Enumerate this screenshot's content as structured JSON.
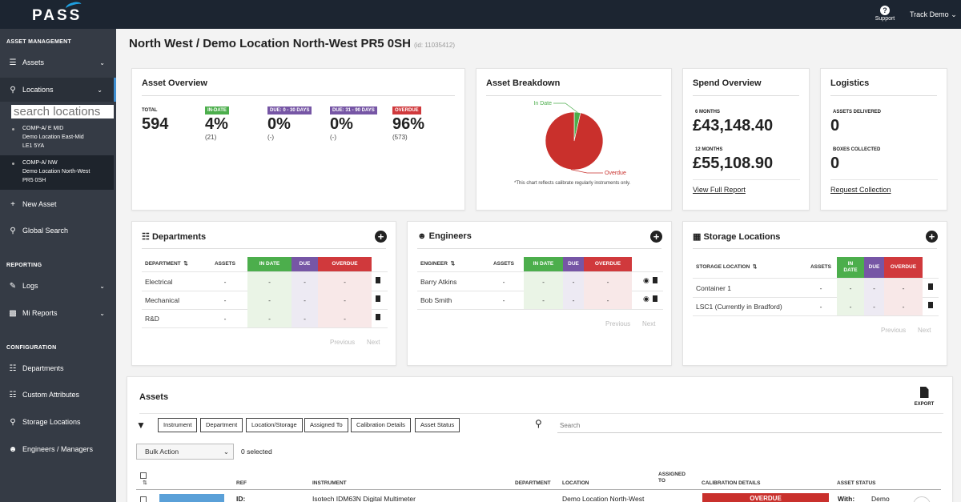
{
  "app": {
    "logo": "PASS",
    "support": "Support",
    "account": "Track Demo"
  },
  "sidebar": {
    "sections": {
      "asset_management": "ASSET MANAGEMENT",
      "reporting": "REPORTING",
      "configuration": "CONFIGURATION"
    },
    "items": {
      "assets": "Assets",
      "locations": "Locations",
      "new_asset": "New Asset",
      "global_search": "Global Search",
      "logs": "Logs",
      "mi_reports": "Mi Reports",
      "departments": "Departments",
      "custom_attributes": "Custom Attributes",
      "storage_locations": "Storage Locations",
      "engineers": "Engineers / Managers"
    },
    "search_placeholder": "search locations",
    "locations": [
      {
        "l1": "COMP-A/ E MID",
        "l2": "Demo Location East-Mid",
        "l3": "LE1 5YA"
      },
      {
        "l1": "COMP-A/ NW",
        "l2": "Demo Location North-West",
        "l3": "PR5 0SH"
      }
    ]
  },
  "page": {
    "title": "North West / Demo Location North-West PR5 0SH",
    "id": "(id: 11035412)"
  },
  "overview": {
    "title": "Asset Overview",
    "total_label": "TOTAL",
    "total": "594",
    "in_date": {
      "label": "IN-DATE",
      "pct": "4%",
      "count": "(21)"
    },
    "due30": {
      "label": "DUE: 0 - 30 DAYS",
      "pct": "0%",
      "count": "(-)"
    },
    "due90": {
      "label": "DUE: 31 - 90 DAYS",
      "pct": "0%",
      "count": "(-)"
    },
    "overdue": {
      "label": "OVERDUE",
      "pct": "96%",
      "count": "(573)"
    }
  },
  "breakdown": {
    "title": "Asset Breakdown",
    "note": "*This chart reflects calibrate regularly instruments only."
  },
  "chart_data": {
    "type": "pie",
    "title": "Asset Breakdown",
    "labels": [
      "In Date",
      "Overdue"
    ],
    "values": [
      21,
      573
    ],
    "colors": [
      "#4cae4c",
      "#c9302c"
    ]
  },
  "spend": {
    "title": "Spend Overview",
    "m6_label": "6 MONTHS",
    "m6": "£43,148.40",
    "m12_label": "12 MONTHS",
    "m12": "£55,108.90",
    "link": "View Full Report"
  },
  "logistics": {
    "title": "Logistics",
    "delivered_label": "ASSETS DELIVERED",
    "delivered": "0",
    "collected_label": "BOXES COLLECTED",
    "collected": "0",
    "link": "Request Collection"
  },
  "departments": {
    "title": "Departments",
    "cols": {
      "name": "DEPARTMENT",
      "assets": "ASSETS",
      "in_date": "IN DATE",
      "due": "DUE",
      "overdue": "OVERDUE"
    },
    "rows": [
      {
        "name": "Electrical",
        "assets": "-",
        "in_date": "-",
        "due": "-",
        "overdue": "-"
      },
      {
        "name": "Mechanical",
        "assets": "-",
        "in_date": "-",
        "due": "-",
        "overdue": "-"
      },
      {
        "name": "R&D",
        "assets": "-",
        "in_date": "-",
        "due": "-",
        "overdue": "-"
      }
    ],
    "prev": "Previous",
    "next": "Next"
  },
  "engineers": {
    "title": "Engineers",
    "cols": {
      "name": "ENGINEER",
      "assets": "ASSETS",
      "in_date": "IN DATE",
      "due": "DUE",
      "overdue": "OVERDUE"
    },
    "rows": [
      {
        "name": "Barry Atkins",
        "assets": "-",
        "in_date": "-",
        "due": "-",
        "overdue": "-"
      },
      {
        "name": "Bob Smith",
        "assets": "-",
        "in_date": "-",
        "due": "-",
        "overdue": "-"
      }
    ],
    "prev": "Previous",
    "next": "Next"
  },
  "storage": {
    "title": "Storage Locations",
    "cols": {
      "name": "STORAGE LOCATION",
      "assets": "ASSETS",
      "in_date": "IN DATE",
      "due": "DUE",
      "overdue": "OVERDUE"
    },
    "rows": [
      {
        "name": "Container 1",
        "assets": "-",
        "in_date": "-",
        "due": "-",
        "overdue": "-"
      },
      {
        "name": "LSC1 (Currently in Bradford)",
        "assets": "-",
        "in_date": "-",
        "due": "-",
        "overdue": "-"
      }
    ],
    "prev": "Previous",
    "next": "Next"
  },
  "assets": {
    "title": "Assets",
    "export": "EXPORT",
    "filters": [
      "Instrument",
      "Department",
      "Location/Storage",
      "Assigned To",
      "Calibration Details",
      "Asset Status"
    ],
    "search_placeholder": "Search",
    "bulk_action": "Bulk Action",
    "selected": "0 selected",
    "cols": {
      "ref": "REF",
      "instrument": "INSTRUMENT",
      "department": "DEPARTMENT",
      "location": "LOCATION",
      "assigned": "ASSIGNED TO",
      "calibration": "CALIBRATION DETAILS",
      "status": "ASSET STATUS"
    },
    "row": {
      "ref": "ID:",
      "instrument": "Isotech IDM63N Digital Multimeter",
      "location": "Demo Location North-West",
      "calibration": "OVERDUE",
      "status_label": "With:",
      "status_value": "Demo"
    }
  }
}
